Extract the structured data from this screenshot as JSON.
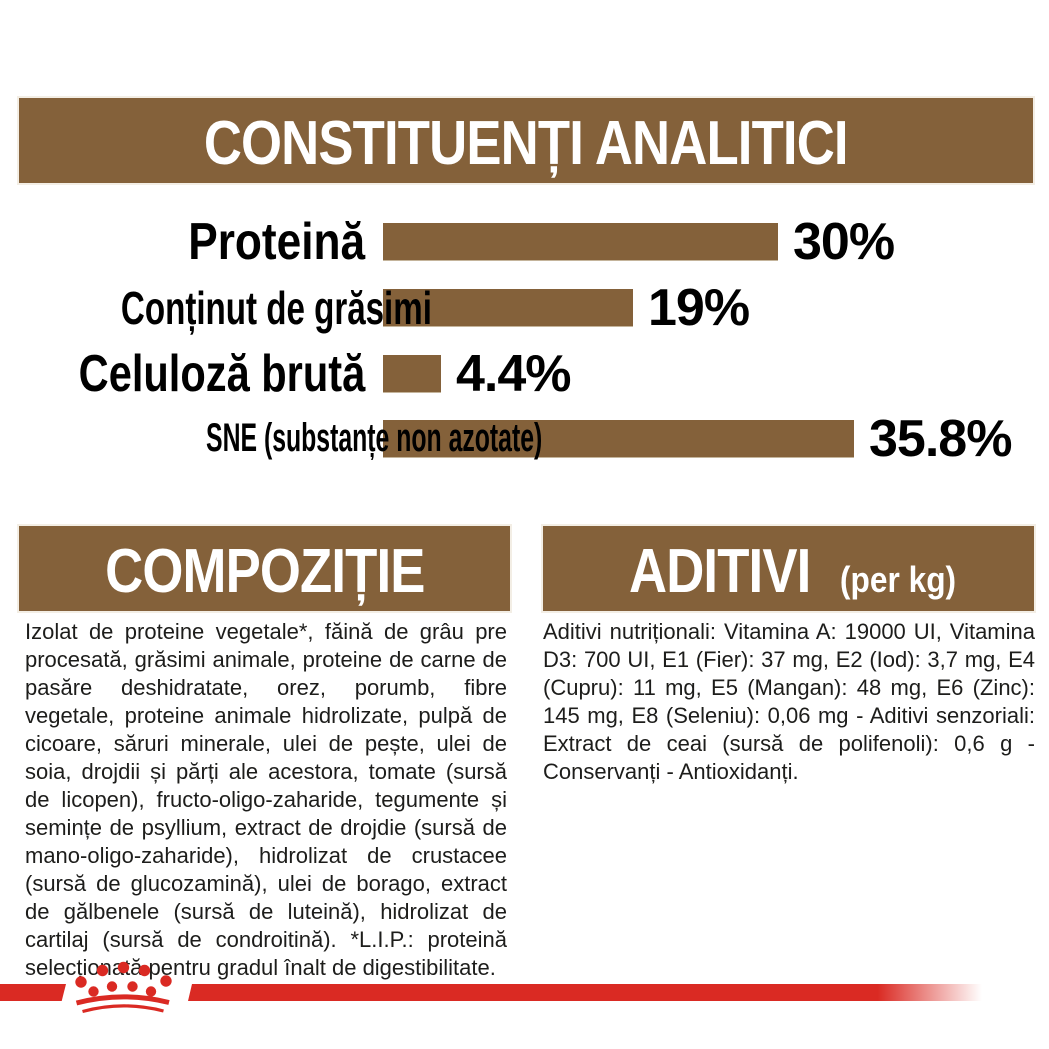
{
  "header": {
    "title": "CONSTITUENȚI ANALITICI"
  },
  "chart_data": {
    "type": "bar",
    "orientation": "horizontal",
    "title": "CONSTITUENȚI ANALITICI",
    "categories": [
      "Proteină",
      "Conținut de grăsimi",
      "Celuloză brută",
      "SNE (substanțe non azotate)"
    ],
    "values": [
      30,
      19,
      4.4,
      35.8
    ],
    "value_labels": [
      "30%",
      "19%",
      "4.4%",
      "35.8%"
    ],
    "unit": "%",
    "xlim": [
      0,
      38
    ],
    "bar_color": "#84613A",
    "grid": false,
    "legend": false
  },
  "composition": {
    "title": "COMPOZIȚIE",
    "body": "Izolat de proteine vegetale*, făină de grâu pre procesată, grăsimi animale, proteine de carne de pasăre deshidratate, orez, porumb, fibre vegetale, proteine animale hidrolizate, pulpă de cicoare, săruri minerale, ulei de pește, ulei de soia, drojdii și părți ale acestora, tomate (sursă de licopen), fructo-oligo-zaharide, tegumente și semințe de psyllium, extract de drojdie (sursă de mano-oligo-zaharide), hidrolizat de crustacee (sursă de glucozamină), ulei de borago, extract de gălbenele (sursă de luteină), hidrolizat de cartilaj (sursă de condroitină).",
    "footnote": "*L.I.P.: proteină selecționată pentru gradul înalt de digestibilitate."
  },
  "additives": {
    "title": "ADITIVI",
    "unit_label": "(per kg)",
    "body": "Aditivi nutriționali: Vitamina A: 19000 UI, Vitamina D3: 700 UI, E1 (Fier): 37 mg, E2 (Iod): 3,7 mg, E4 (Cupru): 11 mg, E5 (Mangan): 48 mg, E6 (Zinc): 145 mg, E8 (Seleniu): 0,06 mg - Aditivi senzoriali: Extract de ceai (sursă de polifenoli): 0,6 g - Conservanți - Antioxidanți."
  },
  "logo": {
    "name": "royal-canin-crown"
  },
  "colors": {
    "brand_brown": "#84613A",
    "brand_red": "#DA2A23",
    "banner_text": "#FFFFFF",
    "body_text": "#1D1D1B"
  }
}
